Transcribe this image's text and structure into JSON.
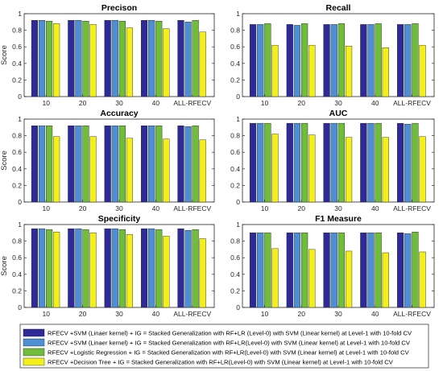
{
  "colors": [
    "#2e2b98",
    "#4e8fd4",
    "#6fbd3b",
    "#f2ef1a"
  ],
  "legend": {
    "entries": [
      "RFECV +SVM (Linaer kernel) + IG  = Stacked Generalization with RF+LR (Level-0) with SVM (Linear kernel) at Level-1 with 10-fold CV",
      "RFECV +SVM (Linaer kernel) + IG  = Stacked Generalization with RF+LR(Level-0) with SVM (Linear kernel) at Level-1 with 10-fold CV",
      "RFECV +Logistic Regression + IG  = Stacked Generalization with RF+LR(Level-0) with SVM (Linear kernel) at Level-1 with 10-fold CV",
      "RFECV +Decision Tree + IG  = Stacked Generalization with RF+LR(Level-0) with SVM (Linear kernel) at Level-1 with 10-fold CV"
    ]
  },
  "chart_data": [
    {
      "type": "bar",
      "title": "Precison",
      "ylabel": "Score",
      "ylim": [
        0,
        1
      ],
      "yticks": [
        "0",
        "0.2",
        "0.4",
        "0.6",
        "0.8",
        "1"
      ],
      "categories": [
        "10",
        "20",
        "30",
        "40",
        "ALL-RFECV"
      ],
      "series": [
        {
          "values": [
            0.92,
            0.92,
            0.92,
            0.92,
            0.92
          ]
        },
        {
          "values": [
            0.92,
            0.92,
            0.92,
            0.92,
            0.9
          ]
        },
        {
          "values": [
            0.91,
            0.91,
            0.91,
            0.91,
            0.92
          ]
        },
        {
          "values": [
            0.88,
            0.87,
            0.83,
            0.82,
            0.78
          ]
        }
      ]
    },
    {
      "type": "bar",
      "title": "Recall",
      "ylabel": "",
      "ylim": [
        0,
        1
      ],
      "yticks": [
        "0",
        "0.2",
        "0.4",
        "0.6",
        "0.8",
        "1"
      ],
      "categories": [
        "10",
        "20",
        "30",
        "40",
        "ALL-RFECV"
      ],
      "series": [
        {
          "values": [
            0.87,
            0.87,
            0.87,
            0.87,
            0.87
          ]
        },
        {
          "values": [
            0.87,
            0.86,
            0.87,
            0.87,
            0.87
          ]
        },
        {
          "values": [
            0.88,
            0.88,
            0.88,
            0.88,
            0.88
          ]
        },
        {
          "values": [
            0.62,
            0.62,
            0.61,
            0.59,
            0.62
          ]
        }
      ]
    },
    {
      "type": "bar",
      "title": "Accuracy",
      "ylabel": "Score",
      "ylim": [
        0,
        1
      ],
      "yticks": [
        "0",
        "0.2",
        "0.4",
        "0.6",
        "0.8",
        "1"
      ],
      "categories": [
        "10",
        "20",
        "30",
        "40",
        "ALL-RFECV"
      ],
      "series": [
        {
          "values": [
            0.92,
            0.92,
            0.92,
            0.92,
            0.92
          ]
        },
        {
          "values": [
            0.92,
            0.92,
            0.92,
            0.92,
            0.91
          ]
        },
        {
          "values": [
            0.92,
            0.92,
            0.92,
            0.92,
            0.92
          ]
        },
        {
          "values": [
            0.79,
            0.79,
            0.77,
            0.76,
            0.75
          ]
        }
      ]
    },
    {
      "type": "bar",
      "title": "AUC",
      "ylabel": "",
      "ylim": [
        0,
        1
      ],
      "yticks": [
        "0",
        "0.2",
        "0.4",
        "0.6",
        "0.8",
        "1"
      ],
      "categories": [
        "10",
        "20",
        "30",
        "40",
        "ALL-RFECV"
      ],
      "series": [
        {
          "values": [
            0.95,
            0.95,
            0.95,
            0.95,
            0.95
          ]
        },
        {
          "values": [
            0.95,
            0.95,
            0.95,
            0.95,
            0.94
          ]
        },
        {
          "values": [
            0.95,
            0.95,
            0.95,
            0.95,
            0.95
          ]
        },
        {
          "values": [
            0.82,
            0.81,
            0.78,
            0.78,
            0.79
          ]
        }
      ]
    },
    {
      "type": "bar",
      "title": "Specificity",
      "ylabel": "Score",
      "ylim": [
        0,
        1
      ],
      "yticks": [
        "0",
        "0.2",
        "0.4",
        "0.6",
        "0.8",
        "1"
      ],
      "categories": [
        "10",
        "20",
        "30",
        "40",
        "ALL-RFECV"
      ],
      "series": [
        {
          "values": [
            0.95,
            0.95,
            0.95,
            0.95,
            0.95
          ]
        },
        {
          "values": [
            0.95,
            0.95,
            0.95,
            0.95,
            0.93
          ]
        },
        {
          "values": [
            0.94,
            0.94,
            0.94,
            0.94,
            0.94
          ]
        },
        {
          "values": [
            0.91,
            0.9,
            0.88,
            0.86,
            0.83
          ]
        }
      ]
    },
    {
      "type": "bar",
      "title": "F1 Measure",
      "ylabel": "",
      "ylim": [
        0,
        1
      ],
      "yticks": [
        "0",
        "0.2",
        "0.4",
        "0.6",
        "0.8",
        "1"
      ],
      "categories": [
        "10",
        "20",
        "30",
        "40",
        "ALL-RFECV"
      ],
      "series": [
        {
          "values": [
            0.9,
            0.9,
            0.9,
            0.9,
            0.9
          ]
        },
        {
          "values": [
            0.9,
            0.9,
            0.9,
            0.9,
            0.89
          ]
        },
        {
          "values": [
            0.9,
            0.9,
            0.9,
            0.9,
            0.91
          ]
        },
        {
          "values": [
            0.71,
            0.7,
            0.68,
            0.66,
            0.67
          ]
        }
      ]
    }
  ]
}
